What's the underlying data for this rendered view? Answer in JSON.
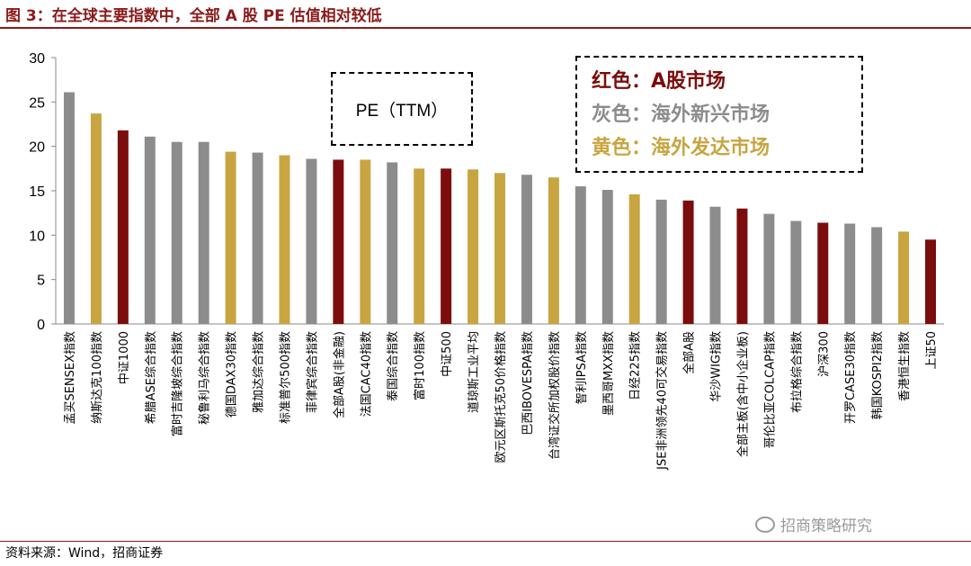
{
  "title": "图 3：在全球主要指数中，全部 A 股 PE 估值相对较低",
  "source": "资料来源：Wind，招商证券",
  "watermark": "招商策略研究",
  "annotation": "PE（TTM）",
  "legend": [
    {
      "label": "红色：A股市场",
      "color": "#7b0d0d"
    },
    {
      "label": "灰色：海外新兴市场",
      "color": "#8c8c8c"
    },
    {
      "label": "黄色：海外发达市场",
      "color": "#c8a541"
    }
  ],
  "chart_data": {
    "type": "bar",
    "ylim": [
      0,
      30
    ],
    "yticks": [
      0,
      5,
      10,
      15,
      20,
      25,
      30
    ],
    "grid": false,
    "colors": {
      "a_share": "#7b0d0d",
      "emerging": "#8c8c8c",
      "developed": "#c8a541"
    },
    "categories": [
      "孟买SENSEX指数",
      "纳斯达克100指数",
      "中证1000",
      "希腊ASE综合指数",
      "富时吉隆坡综合指数",
      "秘鲁利马综合指数",
      "德国DAX30指数",
      "雅加达综合指数",
      "标准普尔500指数",
      "菲律宾综合指数",
      "全部A股(非金融)",
      "法国CAC40指数",
      "泰国综合指数",
      "富时100指数",
      "中证500",
      "道琼斯工业平均",
      "欧元区斯托克50价格指数",
      "巴西IBOVESPA指数",
      "台湾证交所加权股价指数",
      "智利IPSA指数",
      "墨西哥MXX指数",
      "日经225指数",
      "JSE非洲领先40可交易指数",
      "全部A股",
      "华沙WIG指数",
      "全部主板(含中小企业板)",
      "哥伦比亚COLCAP指数",
      "布拉格综合指数",
      "沪深300",
      "开罗CASE30指数",
      "韩国KOSPI2指数",
      "香港恒生指数",
      "上证50"
    ],
    "values": [
      26.1,
      23.7,
      21.8,
      21.1,
      20.5,
      20.5,
      19.4,
      19.3,
      19.0,
      18.6,
      18.5,
      18.5,
      18.2,
      17.5,
      17.5,
      17.4,
      17.0,
      16.8,
      16.5,
      15.5,
      15.1,
      14.6,
      14.0,
      13.9,
      13.2,
      13.0,
      12.4,
      11.6,
      11.4,
      11.3,
      10.9,
      10.4,
      9.5
    ],
    "groups": [
      "emerging",
      "developed",
      "a_share",
      "emerging",
      "emerging",
      "emerging",
      "developed",
      "emerging",
      "developed",
      "emerging",
      "a_share",
      "developed",
      "emerging",
      "developed",
      "a_share",
      "developed",
      "developed",
      "emerging",
      "developed",
      "emerging",
      "emerging",
      "developed",
      "emerging",
      "a_share",
      "emerging",
      "a_share",
      "emerging",
      "emerging",
      "a_share",
      "emerging",
      "emerging",
      "developed",
      "a_share"
    ]
  }
}
